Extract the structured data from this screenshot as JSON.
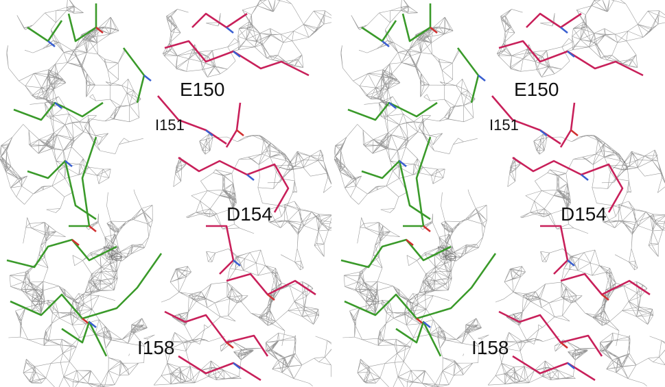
{
  "panels": [
    {
      "labels": [
        "E150",
        "I151",
        "D154",
        "I158"
      ]
    },
    {
      "labels": [
        "E150",
        "I151",
        "D154",
        "I158"
      ]
    }
  ]
}
